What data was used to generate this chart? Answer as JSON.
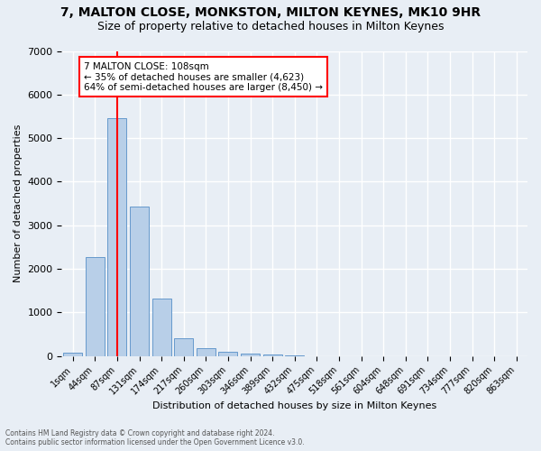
{
  "title": "7, MALTON CLOSE, MONKSTON, MILTON KEYNES, MK10 9HR",
  "subtitle": "Size of property relative to detached houses in Milton Keynes",
  "xlabel": "Distribution of detached houses by size in Milton Keynes",
  "ylabel": "Number of detached properties",
  "footnote1": "Contains HM Land Registry data © Crown copyright and database right 2024.",
  "footnote2": "Contains public sector information licensed under the Open Government Licence v3.0.",
  "bar_labels": [
    "1sqm",
    "44sqm",
    "87sqm",
    "131sqm",
    "174sqm",
    "217sqm",
    "260sqm",
    "303sqm",
    "346sqm",
    "389sqm",
    "432sqm",
    "475sqm",
    "518sqm",
    "561sqm",
    "604sqm",
    "648sqm",
    "691sqm",
    "734sqm",
    "777sqm",
    "820sqm",
    "863sqm"
  ],
  "bar_values": [
    70,
    2280,
    5450,
    3420,
    1310,
    415,
    175,
    100,
    65,
    38,
    20,
    0,
    0,
    0,
    0,
    0,
    0,
    0,
    0,
    0,
    0
  ],
  "bar_color": "#b8cfe8",
  "bar_edgecolor": "#6699cc",
  "vline_x": 2.0,
  "vline_color": "red",
  "annotation_title": "7 MALTON CLOSE: 108sqm",
  "annotation_line1": "← 35% of detached houses are smaller (4,623)",
  "annotation_line2": "64% of semi-detached houses are larger (8,450) →",
  "annotation_box_color": "white",
  "annotation_box_edgecolor": "red",
  "ylim": [
    0,
    7000
  ],
  "yticks": [
    0,
    1000,
    2000,
    3000,
    4000,
    5000,
    6000,
    7000
  ],
  "bg_color": "#e8eef5",
  "plot_bg_color": "#e8eef5",
  "grid_color": "white",
  "title_fontsize": 10,
  "subtitle_fontsize": 9
}
